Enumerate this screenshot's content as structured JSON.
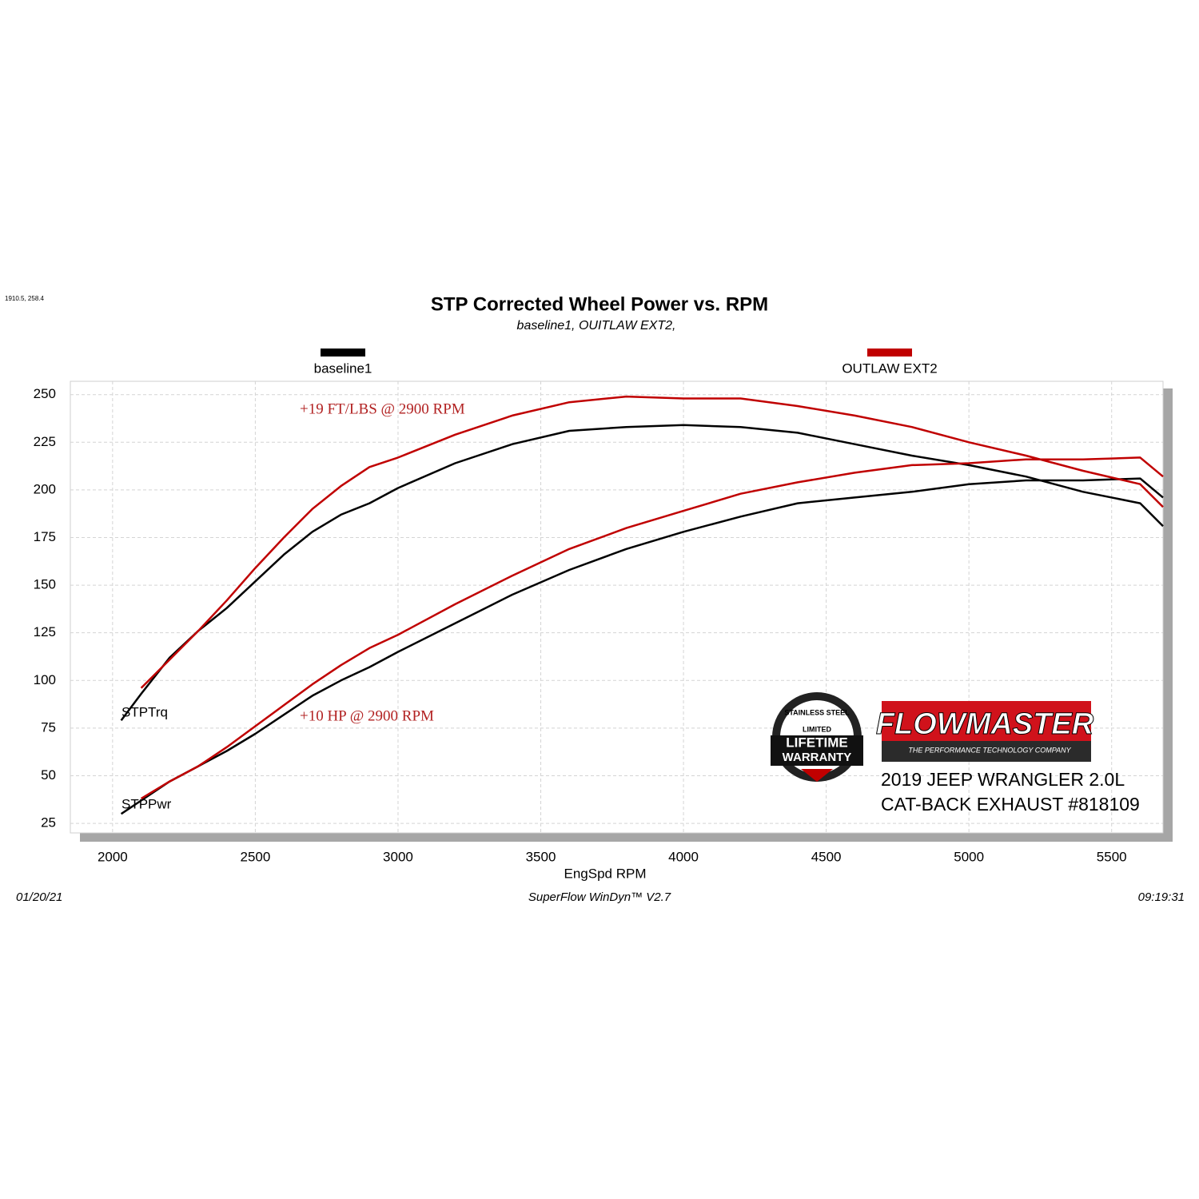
{
  "chart_data": {
    "type": "line",
    "corner_note": "1910.5, 258.4",
    "title": "STP Corrected Wheel Power vs. RPM",
    "subtitle": "baseline1, OUITLAW EXT2,",
    "x_label": "EngSpd  RPM",
    "footer": {
      "date": "01/20/21",
      "software": "SuperFlow WinDyn™  V2.7",
      "time": "09:19:31"
    },
    "annotations": [
      "+19 FT/LBS @ 2900 RPM",
      "+10 HP @ 2900 RPM"
    ],
    "curve_labels": [
      "STPTrq",
      "STPPwr"
    ],
    "logo": {
      "brand": "FLOWMASTER",
      "tagline": "THE PERFORMANCE TECHNOLOGY COMPANY",
      "badge": [
        "STAINLESS STEEL",
        "LIMITED",
        "LIFETIME",
        "WARRANTY"
      ],
      "caption": [
        "2019 JEEP WRANGLER 2.0L",
        "CAT-BACK EXHAUST #818109"
      ]
    },
    "x": [
      2030,
      2100,
      2200,
      2300,
      2400,
      2500,
      2600,
      2700,
      2800,
      2900,
      3000,
      3200,
      3400,
      3600,
      3800,
      4000,
      4200,
      4400,
      4600,
      4800,
      5000,
      5200,
      5400,
      5600,
      5680
    ],
    "series": [
      {
        "name": "baseline1",
        "color": "#000000",
        "torque": [
          79,
          93,
          112,
          126,
          138,
          152,
          166,
          178,
          187,
          193,
          201,
          214,
          224,
          231,
          233,
          234,
          233,
          230,
          224,
          218,
          213,
          207,
          199,
          193,
          181
        ],
        "power": [
          30,
          37,
          47,
          55,
          63,
          72,
          82,
          92,
          100,
          107,
          115,
          130,
          145,
          158,
          169,
          178,
          186,
          193,
          196,
          199,
          203,
          205,
          205,
          206,
          196
        ]
      },
      {
        "name": "OUTLAW EXT2",
        "color": "#c00000",
        "torque": [
          null,
          96,
          111,
          126,
          142,
          159,
          175,
          190,
          202,
          212,
          217,
          229,
          239,
          246,
          249,
          248,
          248,
          244,
          239,
          233,
          225,
          218,
          210,
          203,
          191
        ],
        "power": [
          null,
          38,
          47,
          55,
          65,
          76,
          87,
          98,
          108,
          117,
          124,
          140,
          155,
          169,
          180,
          189,
          198,
          204,
          209,
          213,
          214,
          216,
          216,
          217,
          207
        ]
      }
    ],
    "xlim": [
      1852,
      5680
    ],
    "ylim": [
      20,
      257
    ],
    "xticks": [
      2000,
      2500,
      3000,
      3500,
      4000,
      4500,
      5000,
      5500
    ],
    "yticks": [
      25,
      50,
      75,
      100,
      125,
      150,
      175,
      200,
      225,
      250
    ],
    "grid": true
  }
}
